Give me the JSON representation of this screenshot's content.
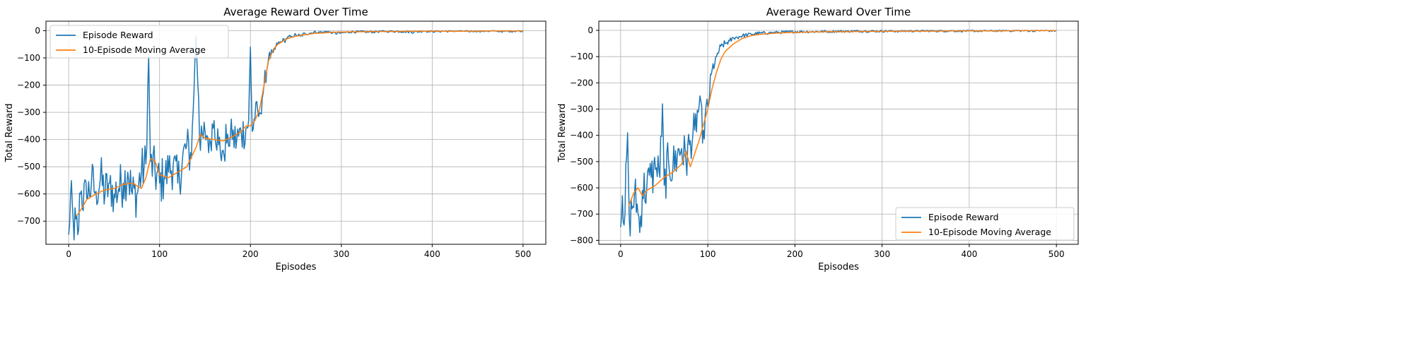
{
  "figure": {
    "background": "#ffffff"
  },
  "colors": {
    "episode": "#1f77b4",
    "moving_avg": "#ff7f0e",
    "grid": "#b0b0b0",
    "axis": "#000000"
  },
  "chart_data": [
    {
      "type": "line",
      "title": "Average Reward Over Time",
      "xlabel": "Episodes",
      "ylabel": "Total Reward",
      "xlim": [
        -25,
        525
      ],
      "ylim": [
        -785,
        35
      ],
      "xticks": [
        0,
        100,
        200,
        300,
        400,
        500
      ],
      "yticks": [
        0,
        -100,
        -200,
        -300,
        -400,
        -500,
        -600,
        -700
      ],
      "grid": true,
      "legend": "upper left",
      "series": [
        {
          "name": "Episode Reward",
          "color": "#1f77b4",
          "noise": 1,
          "x": [
            0,
            2,
            5,
            10,
            13,
            20,
            25,
            30,
            35,
            40,
            45,
            50,
            55,
            60,
            65,
            70,
            75,
            80,
            85,
            88,
            90,
            95,
            100,
            105,
            110,
            115,
            120,
            125,
            130,
            135,
            140,
            143,
            145,
            150,
            155,
            160,
            165,
            170,
            175,
            180,
            185,
            190,
            195,
            198,
            200,
            202,
            205,
            210,
            215,
            220,
            225,
            230,
            235,
            240,
            245,
            250,
            255,
            260,
            265,
            270,
            275,
            280,
            285,
            290,
            300,
            310,
            320,
            330,
            340,
            350,
            360,
            370,
            380,
            390,
            400,
            410,
            420,
            430,
            440,
            450,
            460,
            470,
            480,
            490,
            500
          ],
          "y": [
            -750,
            -610,
            -700,
            -750,
            -600,
            -620,
            -560,
            -590,
            -540,
            -600,
            -560,
            -600,
            -580,
            -560,
            -520,
            -600,
            -600,
            -520,
            -490,
            -90,
            -480,
            -520,
            -560,
            -540,
            -520,
            -490,
            -560,
            -480,
            -420,
            -470,
            -20,
            -250,
            -440,
            -370,
            -400,
            -330,
            -420,
            -440,
            -380,
            -400,
            -400,
            -380,
            -360,
            -330,
            -60,
            -370,
            -320,
            -300,
            -200,
            -100,
            -80,
            -50,
            -40,
            -30,
            -20,
            -15,
            -20,
            -10,
            -10,
            -5,
            -5,
            -5,
            -3,
            -10,
            -8,
            -5,
            -3,
            -5,
            -3,
            -2,
            -2,
            -3,
            -5,
            -1,
            -2,
            -2,
            -1,
            -1,
            -2,
            -1,
            -1,
            -1,
            -2,
            -1,
            0
          ]
        },
        {
          "name": "10-Episode Moving Average",
          "color": "#ff7f0e",
          "noise": 0,
          "x": [
            9,
            15,
            20,
            25,
            30,
            40,
            50,
            60,
            70,
            80,
            85,
            90,
            95,
            100,
            110,
            120,
            130,
            140,
            145,
            150,
            160,
            170,
            180,
            190,
            195,
            200,
            205,
            210,
            215,
            220,
            225,
            230,
            240,
            250,
            260,
            270,
            280,
            290,
            300,
            320,
            340,
            360,
            380,
            400,
            420,
            440,
            460,
            480,
            500
          ],
          "y": [
            -680,
            -650,
            -620,
            -610,
            -600,
            -585,
            -580,
            -565,
            -560,
            -580,
            -540,
            -470,
            -480,
            -530,
            -540,
            -520,
            -500,
            -430,
            -380,
            -395,
            -400,
            -405,
            -390,
            -370,
            -350,
            -350,
            -330,
            -290,
            -200,
            -110,
            -70,
            -50,
            -30,
            -20,
            -15,
            -10,
            -8,
            -6,
            -5,
            -4,
            -3,
            -3,
            -2,
            -2,
            -2,
            -2,
            -1,
            -1,
            -1
          ]
        }
      ]
    },
    {
      "type": "line",
      "title": "Average Reward Over Time",
      "xlabel": "Episodes",
      "ylabel": "Total Reward",
      "xlim": [
        -25,
        525
      ],
      "ylim": [
        -815,
        35
      ],
      "xticks": [
        0,
        100,
        200,
        300,
        400,
        500
      ],
      "yticks": [
        0,
        -100,
        -200,
        -300,
        -400,
        -500,
        -600,
        -700,
        -800
      ],
      "grid": true,
      "legend": "lower right",
      "series": [
        {
          "name": "Episode Reward",
          "color": "#1f77b4",
          "noise": 1,
          "x": [
            0,
            2,
            5,
            8,
            10,
            13,
            16,
            20,
            22,
            25,
            30,
            35,
            40,
            45,
            48,
            50,
            55,
            60,
            65,
            70,
            75,
            80,
            85,
            90,
            95,
            100,
            105,
            110,
            115,
            120,
            125,
            130,
            140,
            150,
            160,
            170,
            180,
            190,
            200,
            220,
            240,
            260,
            280,
            300,
            320,
            340,
            360,
            380,
            400,
            420,
            440,
            460,
            480,
            500
          ],
          "y": [
            -750,
            -630,
            -700,
            -390,
            -720,
            -680,
            -620,
            -700,
            -770,
            -610,
            -600,
            -560,
            -530,
            -560,
            -280,
            -590,
            -500,
            -520,
            -480,
            -450,
            -500,
            -420,
            -380,
            -290,
            -380,
            -290,
            -150,
            -100,
            -60,
            -50,
            -40,
            -30,
            -20,
            -15,
            -10,
            -10,
            -8,
            -6,
            -5,
            -5,
            -4,
            -3,
            -3,
            -3,
            -3,
            -2,
            -2,
            -2,
            -2,
            -2,
            -1,
            -1,
            -1,
            -1
          ]
        },
        {
          "name": "10-Episode Moving Average",
          "color": "#ff7f0e",
          "noise": 0,
          "x": [
            9,
            15,
            20,
            25,
            30,
            40,
            50,
            60,
            70,
            75,
            80,
            85,
            90,
            95,
            100,
            105,
            110,
            115,
            120,
            130,
            140,
            150,
            160,
            180,
            200,
            220,
            240,
            260,
            280,
            300,
            320,
            340,
            360,
            380,
            400,
            420,
            440,
            460,
            480,
            500
          ],
          "y": [
            -670,
            -620,
            -600,
            -630,
            -610,
            -590,
            -560,
            -540,
            -510,
            -460,
            -520,
            -470,
            -420,
            -360,
            -300,
            -220,
            -160,
            -110,
            -80,
            -50,
            -30,
            -20,
            -15,
            -10,
            -8,
            -6,
            -5,
            -5,
            -4,
            -4,
            -3,
            -3,
            -3,
            -2,
            -2,
            -2,
            -2,
            -1,
            -1,
            -1
          ]
        }
      ]
    }
  ]
}
